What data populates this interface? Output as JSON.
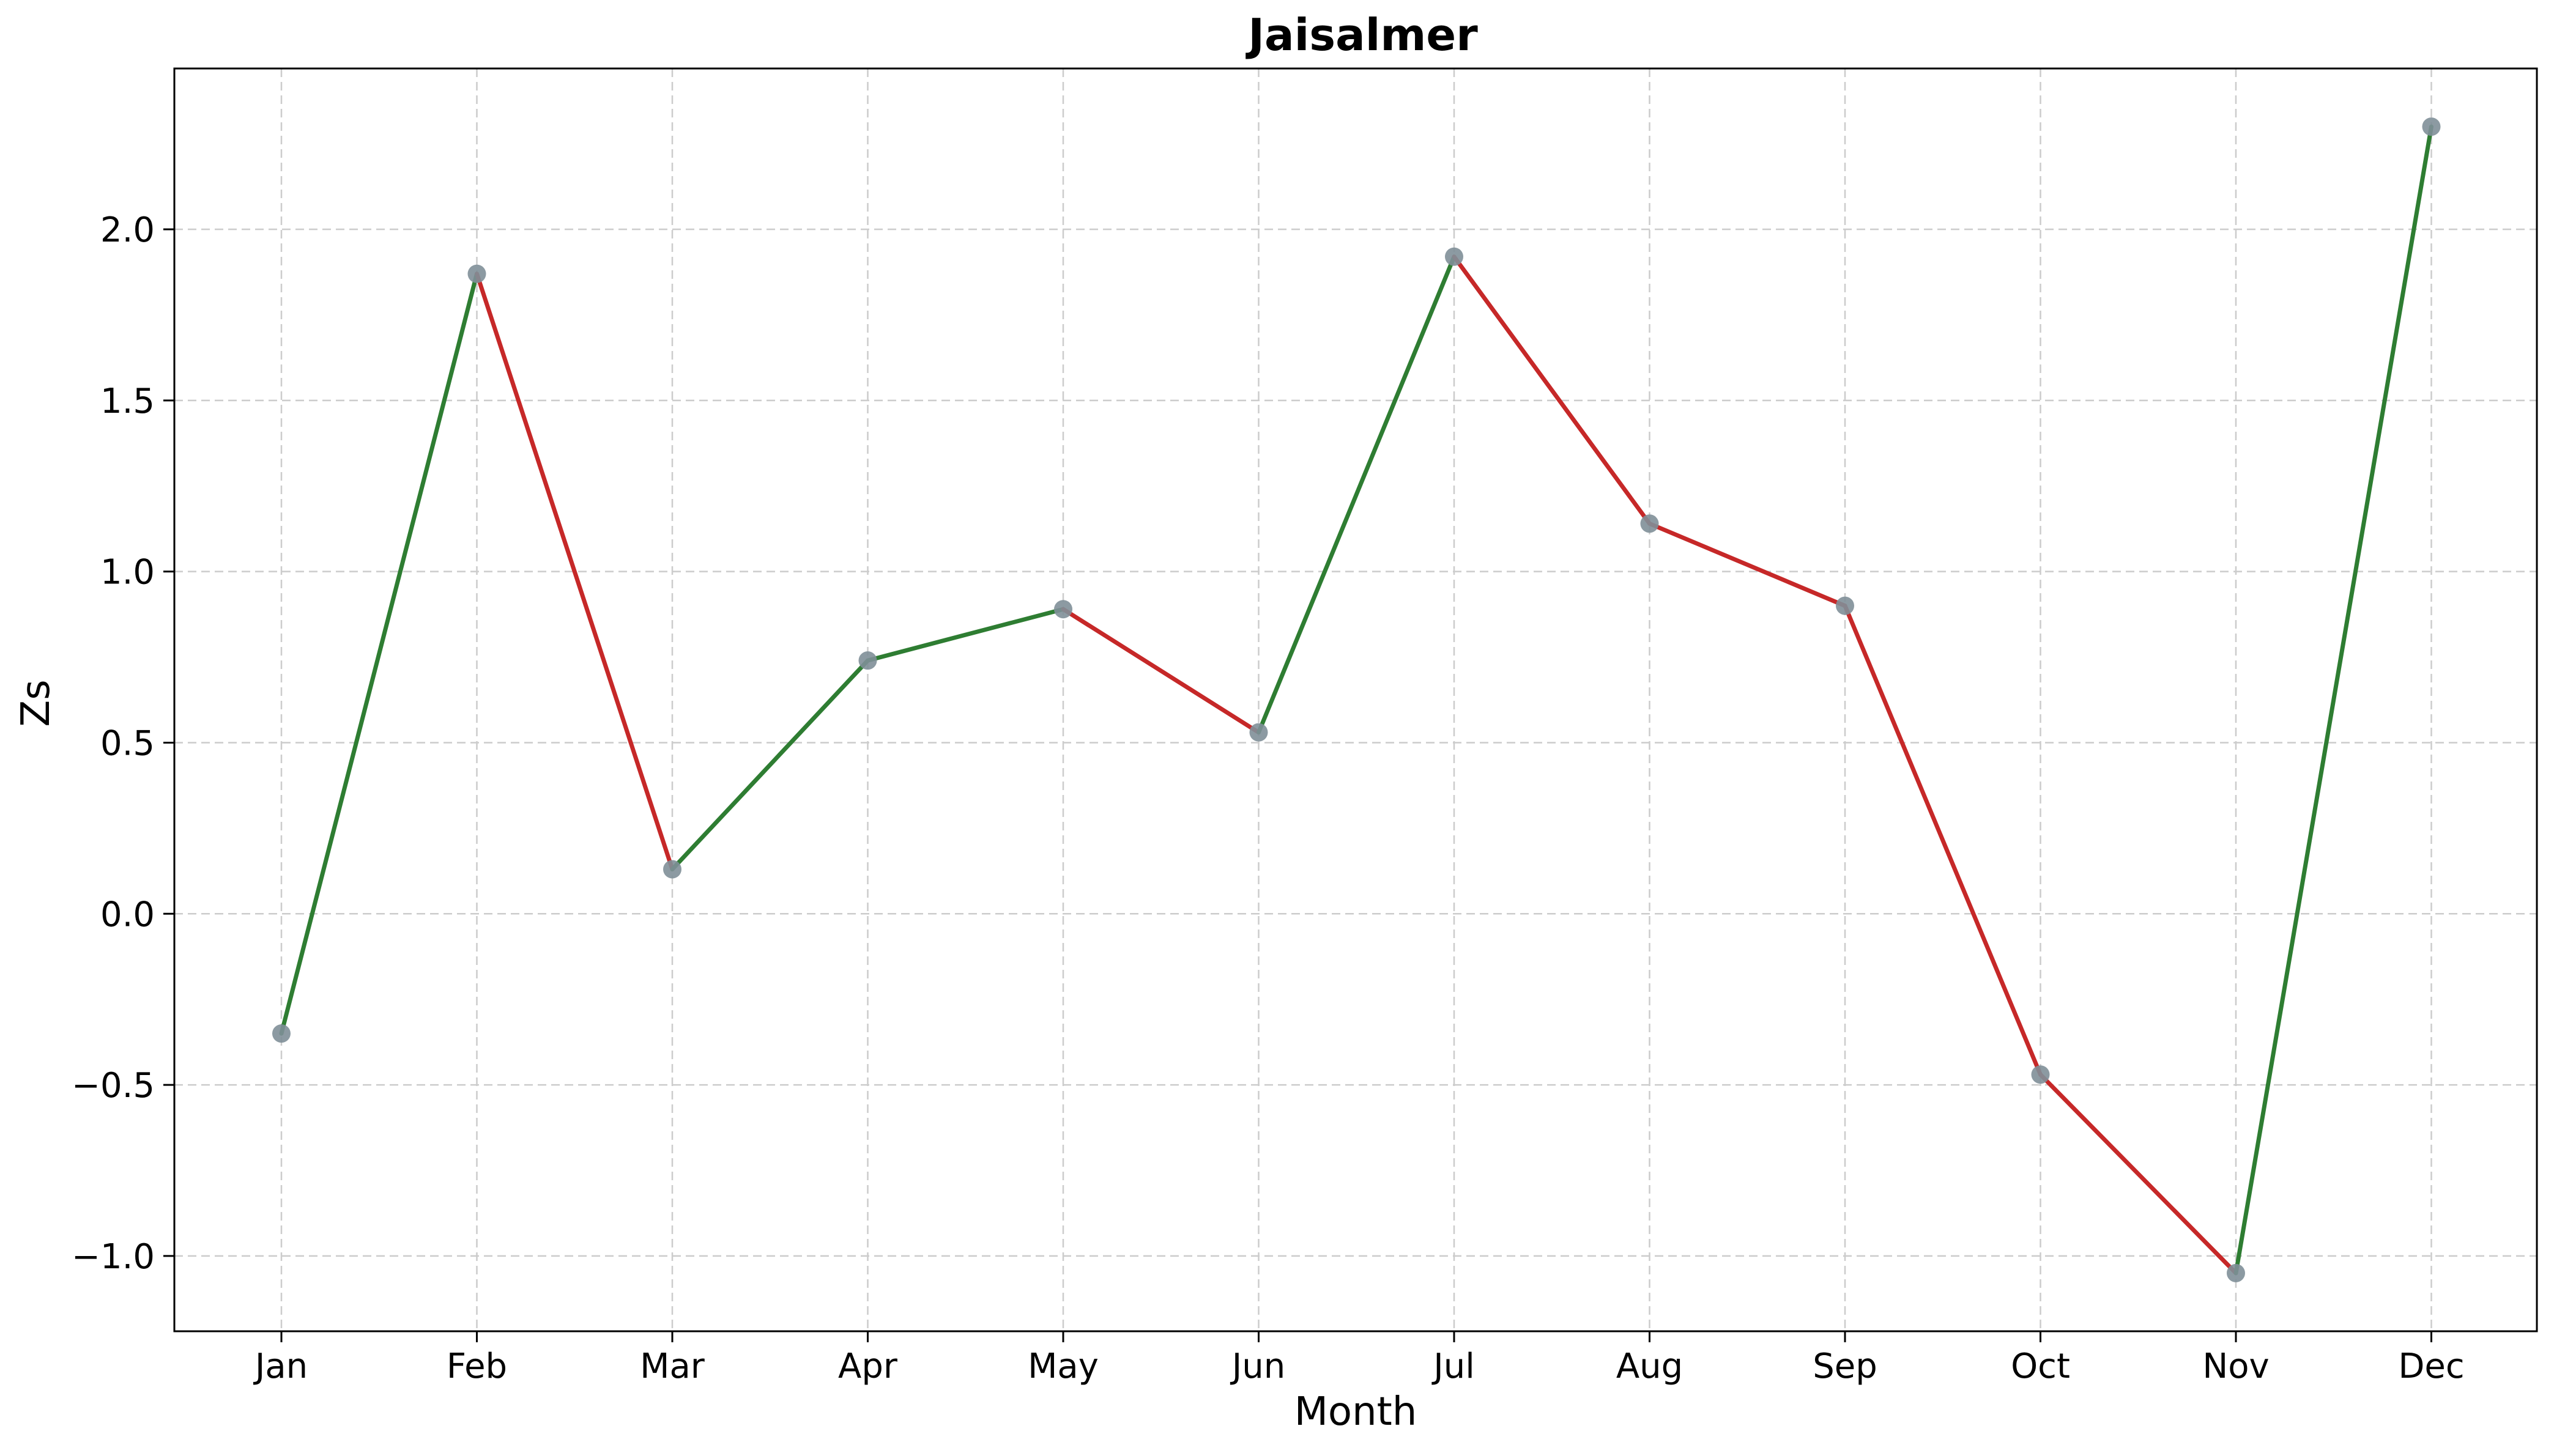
{
  "chart_data": {
    "type": "line",
    "title": "Jaisalmer",
    "xlabel": "Month",
    "ylabel": "Zs",
    "categories": [
      "Jan",
      "Feb",
      "Mar",
      "Apr",
      "May",
      "Jun",
      "Jul",
      "Aug",
      "Sep",
      "Oct",
      "Nov",
      "Dec"
    ],
    "series": [
      {
        "values": [
          -0.35,
          1.87,
          0.13,
          0.74,
          0.89,
          0.53,
          1.92,
          1.14,
          0.9,
          -0.47,
          -1.05,
          2.3
        ]
      }
    ],
    "ylim": [
      -1.22,
      2.47
    ],
    "yticks": [
      -1.0,
      -0.5,
      0.0,
      0.5,
      1.0,
      1.5,
      2.0
    ],
    "ytick_labels": [
      "−1.0",
      "−0.5",
      "0.0",
      "0.5",
      "1.0",
      "1.5",
      "2.0"
    ],
    "grid": true,
    "colors": {
      "increase": "#2e7d32",
      "decrease": "#c62828",
      "marker": "#7f8f98",
      "grid": "#cccccc",
      "axes": "#000000"
    }
  }
}
